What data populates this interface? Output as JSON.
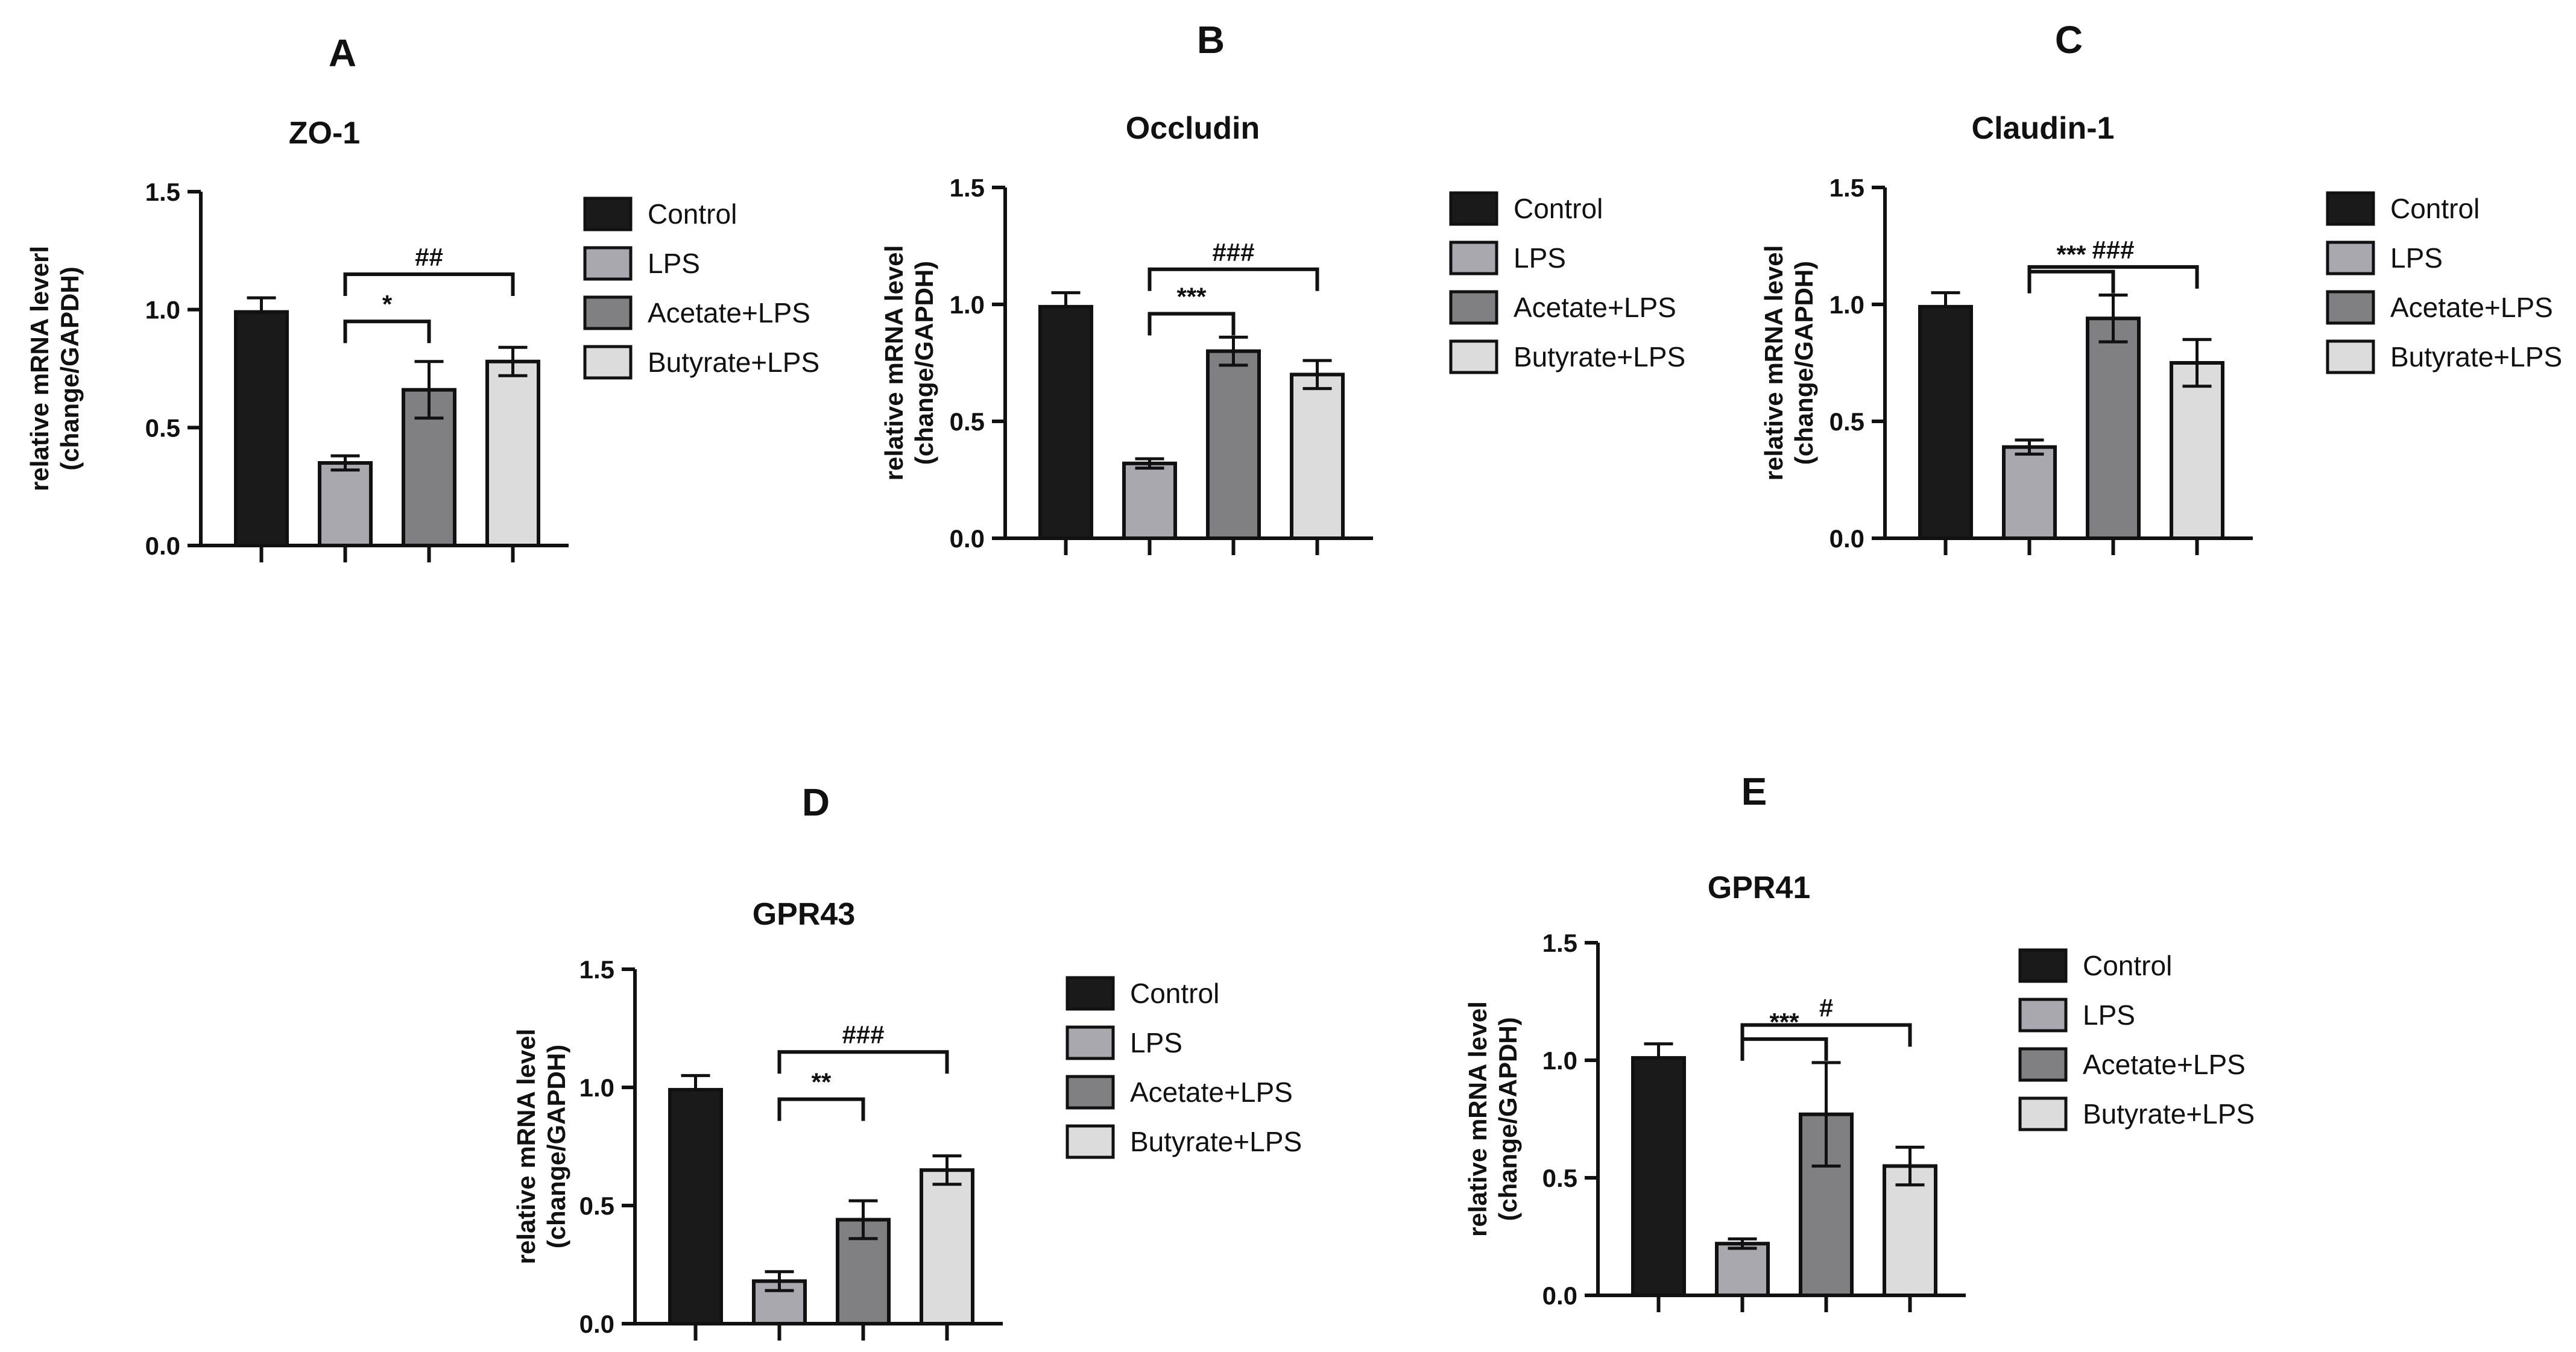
{
  "figure": {
    "legend_labels": [
      "Control",
      "LPS",
      "Acetate+LPS",
      "Butyrate+LPS"
    ],
    "colors": [
      "#1a1a1a",
      "#a8a8ae",
      "#808083",
      "#dcdcdc"
    ]
  },
  "chart_data": [
    {
      "type": "bar",
      "panel_label": "A",
      "title": "ZO-1",
      "ylabel": [
        "relative mRNA leverl",
        "(change/GAPDH)"
      ],
      "categories": [
        "Control",
        "LPS",
        "Acetate+LPS",
        "Butyrate+LPS"
      ],
      "values": [
        0.99,
        0.35,
        0.66,
        0.78
      ],
      "errors": [
        0.06,
        0.03,
        0.12,
        0.06
      ],
      "ylim": [
        0,
        1.5
      ],
      "yticks": [
        "0.0",
        "0.5",
        "1.0",
        "1.5"
      ],
      "annotations": [
        {
          "from": 1,
          "to": 2,
          "label": "*"
        },
        {
          "from": 1,
          "to": 3,
          "label": "##"
        }
      ]
    },
    {
      "type": "bar",
      "panel_label": "B",
      "title": "Occludin",
      "ylabel": [
        "relative mRNA level",
        "(change/GAPDH)"
      ],
      "categories": [
        "Control",
        "LPS",
        "Acetate+LPS",
        "Butyrate+LPS"
      ],
      "values": [
        0.99,
        0.32,
        0.8,
        0.7
      ],
      "errors": [
        0.06,
        0.02,
        0.06,
        0.06
      ],
      "ylim": [
        0,
        1.5
      ],
      "yticks": [
        "0.0",
        "0.5",
        "1.0",
        "1.5"
      ],
      "annotations": [
        {
          "from": 1,
          "to": 2,
          "label": "***"
        },
        {
          "from": 1,
          "to": 3,
          "label": "###"
        }
      ]
    },
    {
      "type": "bar",
      "panel_label": "C",
      "title": "Claudin-1",
      "ylabel": [
        "relative mRNA level",
        "(change/GAPDH)"
      ],
      "categories": [
        "Control",
        "LPS",
        "Acetate+LPS",
        "Butyrate+LPS"
      ],
      "values": [
        0.99,
        0.39,
        0.94,
        0.75
      ],
      "errors": [
        0.06,
        0.03,
        0.1,
        0.1
      ],
      "ylim": [
        0,
        1.5
      ],
      "yticks": [
        "0.0",
        "0.5",
        "1.0",
        "1.5"
      ],
      "annotations": [
        {
          "from": 1,
          "to": 2,
          "label": "***"
        },
        {
          "from": 1,
          "to": 3,
          "label": "###"
        }
      ]
    },
    {
      "type": "bar",
      "panel_label": "D",
      "title": "GPR43",
      "ylabel": [
        "relative mRNA level",
        "(change/GAPDH)"
      ],
      "categories": [
        "Control",
        "LPS",
        "Acetate+LPS",
        "Butyrate+LPS"
      ],
      "values": [
        0.99,
        0.18,
        0.44,
        0.65
      ],
      "errors": [
        0.06,
        0.04,
        0.08,
        0.06
      ],
      "ylim": [
        0,
        1.5
      ],
      "yticks": [
        "0.0",
        "0.5",
        "1.0",
        "1.5"
      ],
      "annotations": [
        {
          "from": 1,
          "to": 2,
          "label": "**"
        },
        {
          "from": 1,
          "to": 3,
          "label": "###"
        }
      ]
    },
    {
      "type": "bar",
      "panel_label": "E",
      "title": "GPR41",
      "ylabel": [
        "relative mRNA level",
        "(change/GAPDH)"
      ],
      "categories": [
        "Control",
        "LPS",
        "Acetate+LPS",
        "Butyrate+LPS"
      ],
      "values": [
        1.01,
        0.22,
        0.77,
        0.55
      ],
      "errors": [
        0.06,
        0.02,
        0.22,
        0.08
      ],
      "ylim": [
        0,
        1.5
      ],
      "yticks": [
        "0.0",
        "0.5",
        "1.0",
        "1.5"
      ],
      "annotations": [
        {
          "from": 1,
          "to": 2,
          "label": "***"
        },
        {
          "from": 1,
          "to": 3,
          "label": "#"
        }
      ]
    }
  ]
}
